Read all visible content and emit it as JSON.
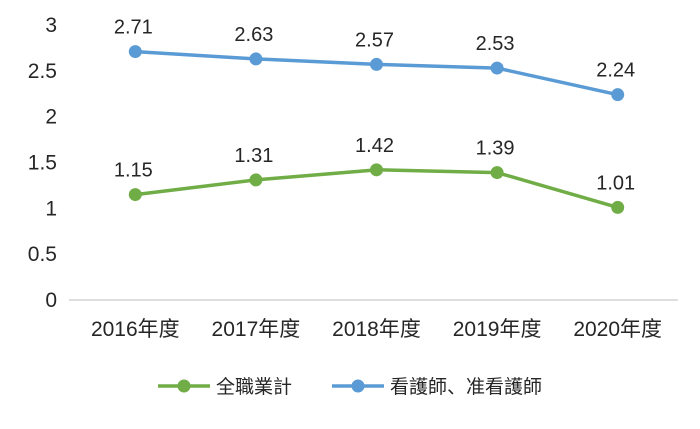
{
  "chart_data": {
    "type": "line",
    "title": "",
    "xlabel": "",
    "ylabel": "",
    "categories": [
      "2016年度",
      "2017年度",
      "2018年度",
      "2019年度",
      "2020年度"
    ],
    "series": [
      {
        "name": "全職業計",
        "color": "#70AD47",
        "values": [
          1.15,
          1.31,
          1.42,
          1.39,
          1.01
        ],
        "data_labels": [
          "1.15",
          "1.31",
          "1.42",
          "1.39",
          "1.01"
        ]
      },
      {
        "name": "看護師、准看護師",
        "color": "#5B9BD5",
        "values": [
          2.71,
          2.63,
          2.57,
          2.53,
          2.24
        ],
        "data_labels": [
          "2.71",
          "2.63",
          "2.57",
          "2.53",
          "2.24"
        ]
      }
    ],
    "ylim": [
      0,
      3
    ],
    "yticks": [
      "0",
      "0.5",
      "1",
      "1.5",
      "2",
      "2.5",
      "3"
    ],
    "grid": false,
    "legend_position": "bottom"
  },
  "colors": {
    "background": "#ffffff",
    "axis_line": "#bfbfbf",
    "tick_text": "#262626",
    "data_label_text": "#1a1a1a"
  }
}
